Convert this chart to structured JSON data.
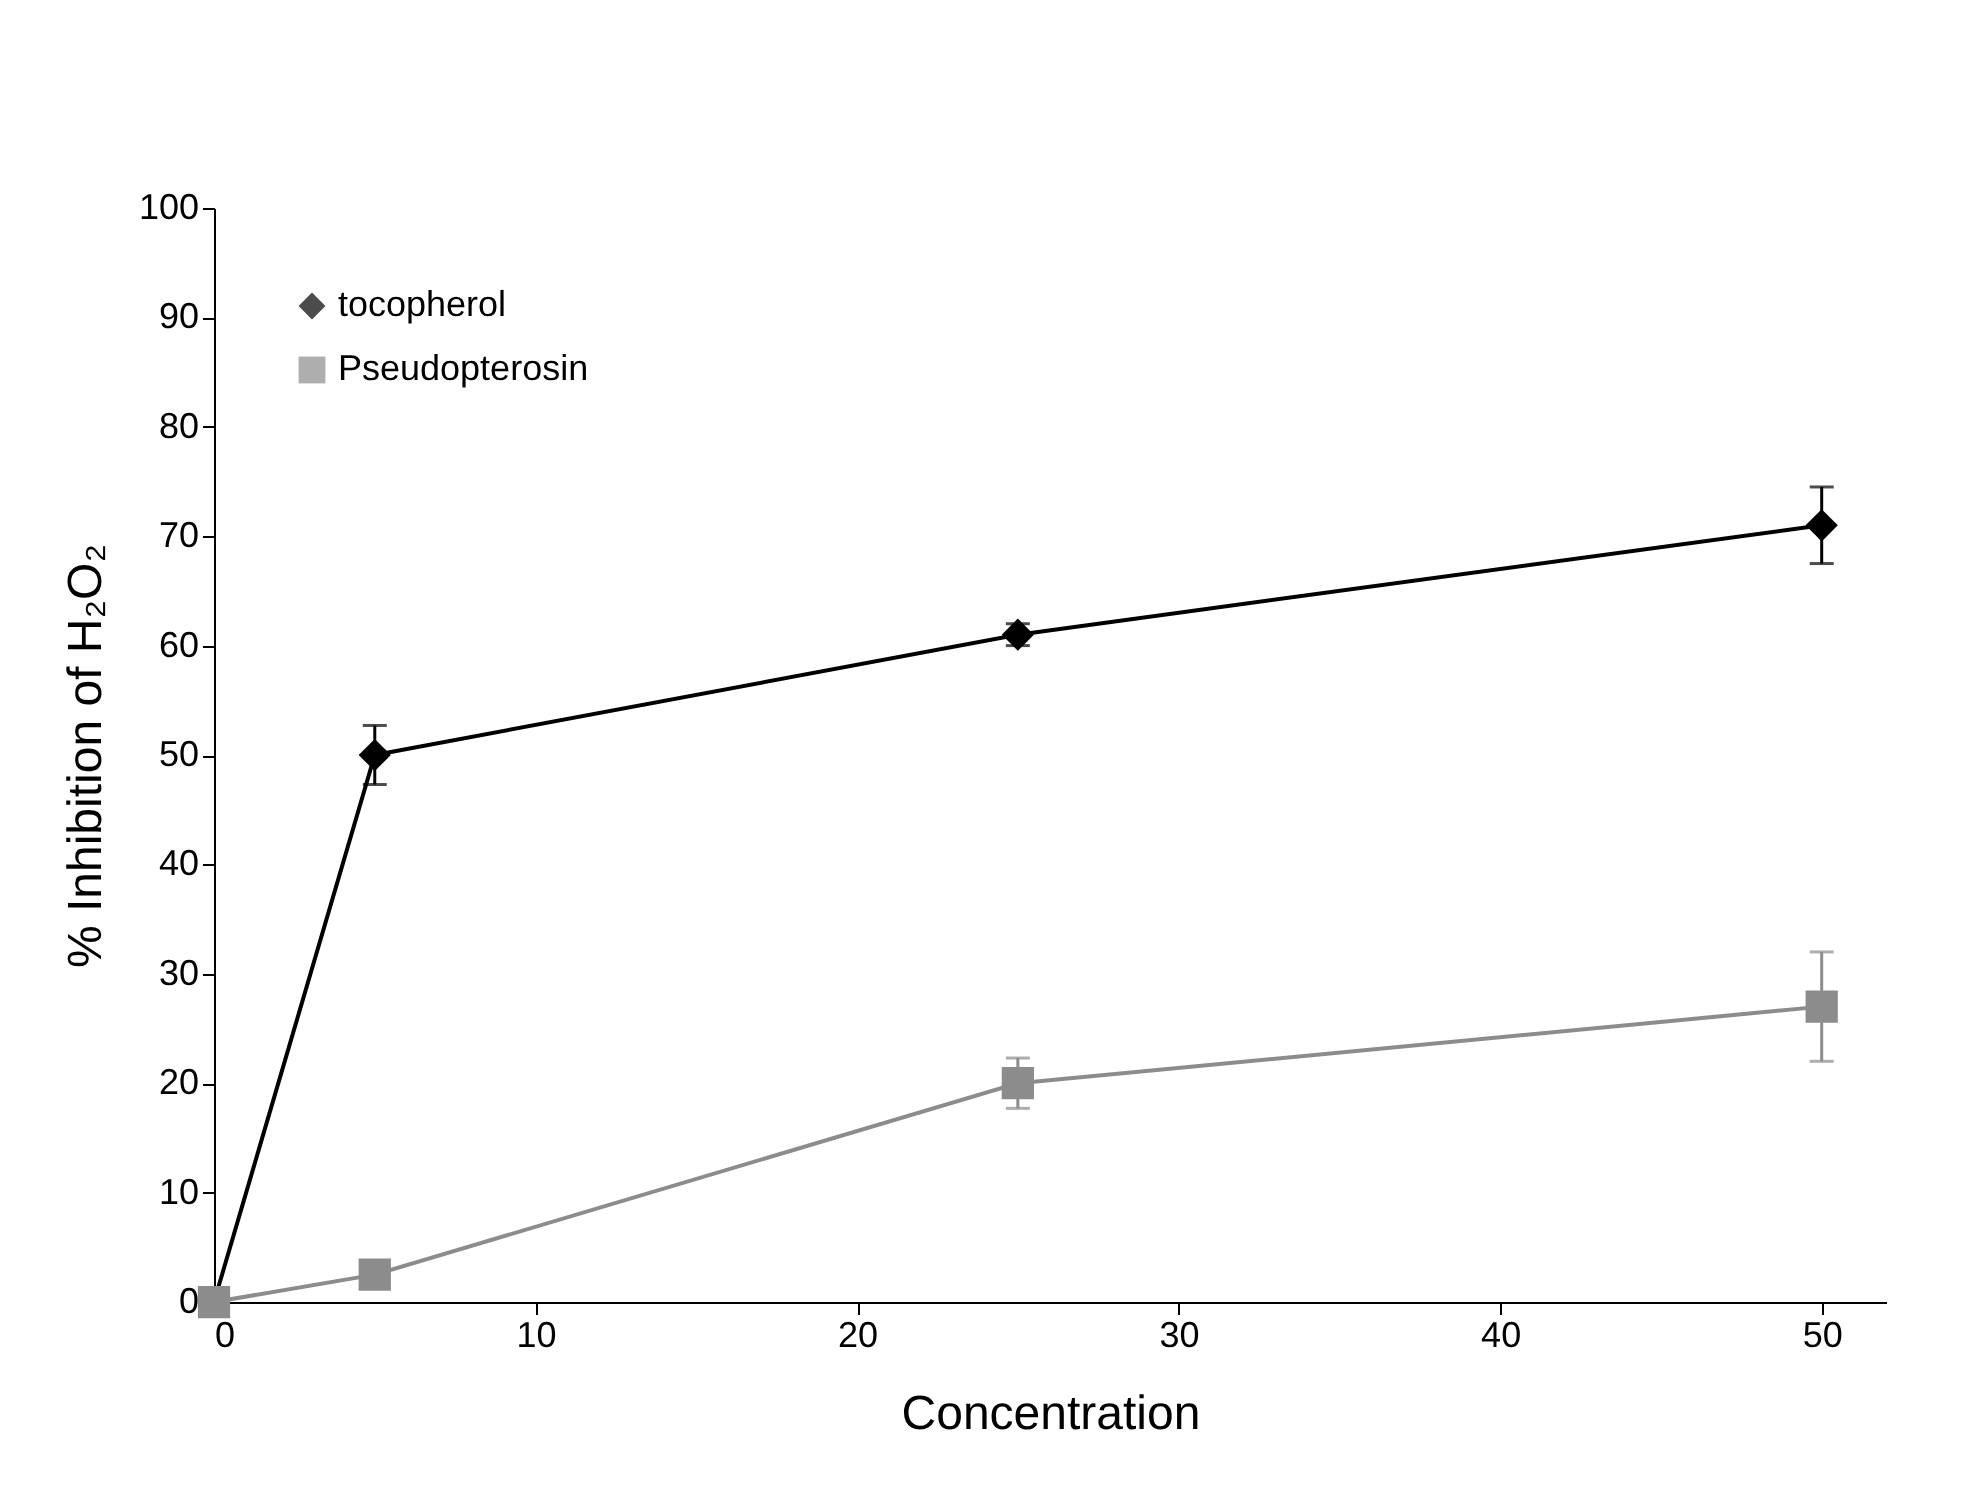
{
  "chart_data": {
    "type": "line",
    "xlabel": "Concentration",
    "ylabel": "% Inhibition of H₂O₂",
    "x": [
      0,
      5,
      25,
      50
    ],
    "series": [
      {
        "name": "tocopherol",
        "color": "#000000",
        "marker": "diamond",
        "values": [
          0,
          50,
          61,
          71
        ],
        "errors": [
          null,
          2.7,
          1,
          3.5
        ]
      },
      {
        "name": "Pseudopterosin",
        "color": "#8c8c8c",
        "marker": "square",
        "values": [
          0,
          2.5,
          20,
          27
        ],
        "errors": [
          null,
          1,
          2.3,
          5
        ]
      }
    ],
    "xlim": [
      0,
      52
    ],
    "xticks": [
      0,
      10,
      20,
      30,
      40,
      50
    ],
    "ylim": [
      0,
      100
    ],
    "yticks": [
      0,
      10,
      20,
      30,
      40,
      50,
      60,
      70,
      80,
      90,
      100
    ],
    "grid": false,
    "legend": "top left"
  }
}
